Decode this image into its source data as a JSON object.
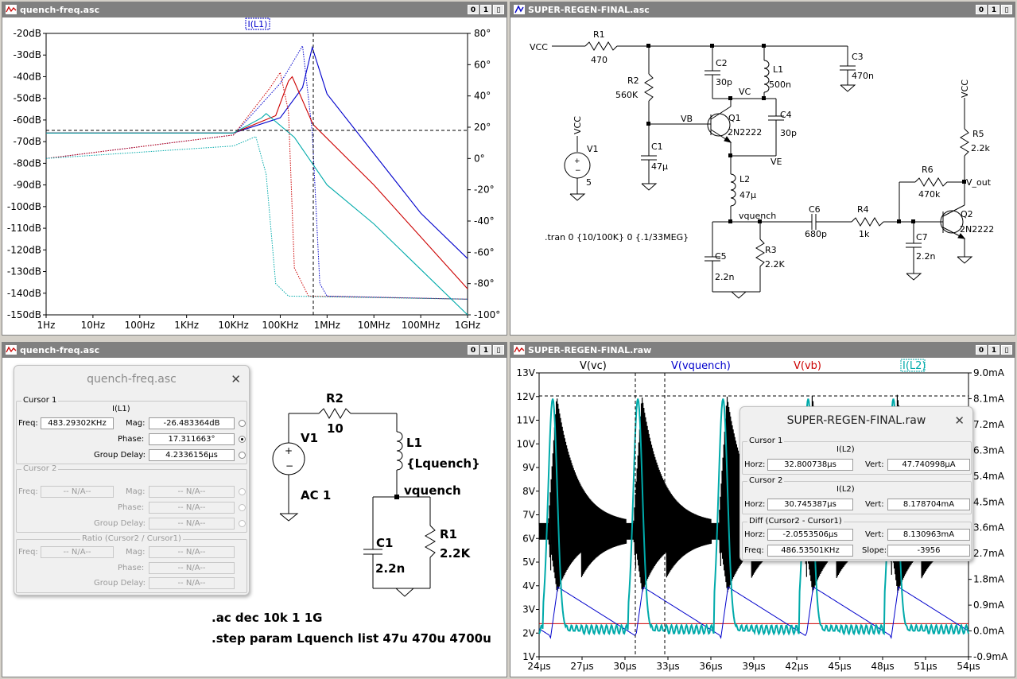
{
  "windows": {
    "tl": {
      "title": "quench-freq.asc"
    },
    "tr": {
      "title": "SUPER-REGEN-FINAL.asc"
    },
    "bl": {
      "title": "quench-freq.asc"
    },
    "br": {
      "title": "SUPER-REGEN-FINAL.raw"
    },
    "buttons": [
      "0",
      "1",
      "▯"
    ]
  },
  "bode": {
    "trace_label": "I(L1)",
    "y_ticks": [
      "-20dB",
      "-30dB",
      "-40dB",
      "-50dB",
      "-60dB",
      "-70dB",
      "-80dB",
      "-90dB",
      "-100dB",
      "-110dB",
      "-120dB",
      "-130dB",
      "-140dB",
      "-150dB"
    ],
    "y2_ticks": [
      "80°",
      "60°",
      "40°",
      "20°",
      "0°",
      "-20°",
      "-40°",
      "-60°",
      "-80°",
      "-100°"
    ],
    "x_ticks": [
      "1Hz",
      "10Hz",
      "100Hz",
      "1KHz",
      "10KHz",
      "100KHz",
      "1MHz",
      "10MHz",
      "100MHz",
      "1GHz"
    ]
  },
  "chart_data": [
    {
      "type": "line",
      "title": "I(L1)",
      "x_scale": "log",
      "xlim": [
        "1Hz",
        "1GHz"
      ],
      "ylim": [
        -150,
        -20
      ],
      "y_unit": "dB",
      "y2lim": [
        -100,
        80
      ],
      "y2_unit": "deg",
      "series": [
        {
          "name": "",
          "color": "#0000cc",
          "style": "magnitude",
          "points": [
            [
              1,
              -66
            ],
            [
              10000,
              -66
            ],
            [
              100000,
              -59
            ],
            [
              300000,
              -45
            ],
            [
              483000,
              -26.5
            ],
            [
              1000000,
              -48
            ],
            [
              100000000,
              -103
            ],
            [
              1000000000,
              -124
            ]
          ]
        },
        {
          "name": "",
          "color": "#cc0000",
          "style": "magnitude",
          "points": [
            [
              1,
              -66
            ],
            [
              10000,
              -66
            ],
            [
              80000,
              -58
            ],
            [
              150000,
              -42
            ],
            [
              180000,
              -40
            ],
            [
              500000,
              -62
            ],
            [
              10000000,
              -90
            ],
            [
              1000000000,
              -138
            ]
          ]
        },
        {
          "name": "",
          "color": "#00aaaa",
          "style": "magnitude",
          "points": [
            [
              1,
              -66
            ],
            [
              10000,
              -66
            ],
            [
              40000,
              -59
            ],
            [
              50000,
              -57
            ],
            [
              200000,
              -68
            ],
            [
              1000000,
              -90
            ],
            [
              10000000,
              -108
            ],
            [
              1000000000,
              -150
            ]
          ]
        }
      ]
    },
    {
      "type": "line",
      "x_unit": "µs",
      "xlim": [
        24,
        54
      ],
      "ylim": [
        1,
        13
      ],
      "y_unit": "V",
      "y2lim": [
        -0.9,
        9.0
      ],
      "y2_unit": "mA",
      "series": [
        {
          "name": "V(vc)",
          "color": "#000000",
          "description": "superregenerative bursts peaking ~12V every ~6µs"
        },
        {
          "name": "V(vquench)",
          "color": "#0000cc",
          "description": "sawtooth quench ~1.8V to ~4V"
        },
        {
          "name": "V(vb)",
          "color": "#cc0000",
          "description": "flat ~2.4V"
        },
        {
          "name": "I(L2)",
          "color": "#00aaaa",
          "description": "peaks ~8.1mA aligned with bursts"
        }
      ]
    }
  ],
  "schematic_main": {
    "labels": {
      "vcc1": "VCC",
      "r1": "R1",
      "r1v": "470",
      "r2": "R2",
      "r2v": "560K",
      "c2": "C2",
      "c2v": "30p",
      "l1": "L1",
      "l1v": "500n",
      "c3": "C3",
      "c3v": "470n",
      "vc": "VC",
      "c4": "C4",
      "c4v": "30p",
      "vb": "VB",
      "q1": "Q1",
      "q1v": "2N2222",
      "c1": "C1",
      "c1v": "47µ",
      "v1": "V1",
      "v1v": "5",
      "vcc2": "VCC",
      "ve": "VE",
      "l2": "L2",
      "l2v": "47µ",
      "vquench": "vquench",
      "c6": "C6",
      "c6v": "680p",
      "r4": "R4",
      "r4v": "1k",
      "c7": "C7",
      "c7v": "2.2n",
      "q2": "Q2",
      "q2v": "2N2222",
      "r5": "R5",
      "r5v": "2.2k",
      "r6": "R6",
      "r6v": "470k",
      "vout": "V_out",
      "vcc3": "VCC",
      "c5": "C5",
      "c5v": "2.2n",
      "r3": "R3",
      "r3v": "2.2K",
      "tran": ".tran 0 {10/100K} 0 {.1/33MEG}"
    }
  },
  "schematic_quench": {
    "labels": {
      "r2": "R2",
      "r2v": "10",
      "v1": "V1",
      "v1v": "AC 1",
      "l1": "L1",
      "l1v": "{Lquench}",
      "vquench": "vquench",
      "c1": "C1",
      "c1v": "2.2n",
      "r1": "R1",
      "r1v": "2.2K",
      "ac": ".ac dec 10k 1 1G",
      "step": ".step param Lquench list 47u 470u 4700u"
    }
  },
  "cursor_dialog": {
    "title": "quench-freq.asc",
    "cursor1": {
      "label": "Cursor 1",
      "trace": "I(L1)",
      "freq_label": "Freq:",
      "freq": "483.29302KHz",
      "mag_label": "Mag:",
      "mag": "-26.483364dB",
      "phase_label": "Phase:",
      "phase": "17.311663°",
      "gd_label": "Group Delay:",
      "gd": "4.2336156µs"
    },
    "cursor2": {
      "label": "Cursor 2",
      "freq_label": "Freq:",
      "freq": "-- N/A--",
      "mag_label": "Mag:",
      "mag": "-- N/A--",
      "phase_label": "Phase:",
      "phase": "-- N/A--",
      "gd_label": "Group Delay:",
      "gd": "-- N/A--"
    },
    "ratio": {
      "label": "Ratio (Cursor2 / Cursor1)",
      "freq_label": "Freq:",
      "freq": "-- N/A--",
      "mag_label": "Mag:",
      "mag": "-- N/A--",
      "phase_label": "Phase:",
      "phase": "-- N/A--",
      "gd_label": "Group Delay:",
      "gd": "-- N/A--"
    }
  },
  "transient": {
    "legend": [
      "V(vc)",
      "V(vquench)",
      "V(vb)",
      "I(L2)"
    ],
    "y_ticks": [
      "13V",
      "12V",
      "11V",
      "10V",
      "9V",
      "8V",
      "7V",
      "6V",
      "5V",
      "4V",
      "3V",
      "2V",
      "1V"
    ],
    "y2_ticks": [
      "9.0mA",
      "8.1mA",
      "7.2mA",
      "6.3mA",
      "5.4mA",
      "4.5mA",
      "3.6mA",
      "2.7mA",
      "1.8mA",
      "0.9mA",
      "0.0mA",
      "-0.9mA"
    ],
    "x_ticks": [
      "24µs",
      "27µs",
      "30µs",
      "33µs",
      "36µs",
      "39µs",
      "42µs",
      "45µs",
      "48µs",
      "51µs",
      "54µs"
    ]
  },
  "raw_dialog": {
    "title": "SUPER-REGEN-FINAL.raw",
    "cursor1": {
      "label": "Cursor 1",
      "trace": "I(L2)",
      "horz_label": "Horz:",
      "horz": "32.800738µs",
      "vert_label": "Vert:",
      "vert": "47.740998µA"
    },
    "cursor2": {
      "label": "Cursor 2",
      "trace": "I(L2)",
      "horz_label": "Horz:",
      "horz": "30.745387µs",
      "vert_label": "Vert:",
      "vert": "8.178704mA"
    },
    "diff": {
      "label": "Diff (Cursor2 - Cursor1)",
      "horz_label": "Horz:",
      "horz": "-2.0553506µs",
      "vert_label": "Vert:",
      "vert": "8.130963mA",
      "freq_label": "Freq:",
      "freq": "486.53501KHz",
      "slope_label": "Slope:",
      "slope": "-3956"
    }
  }
}
